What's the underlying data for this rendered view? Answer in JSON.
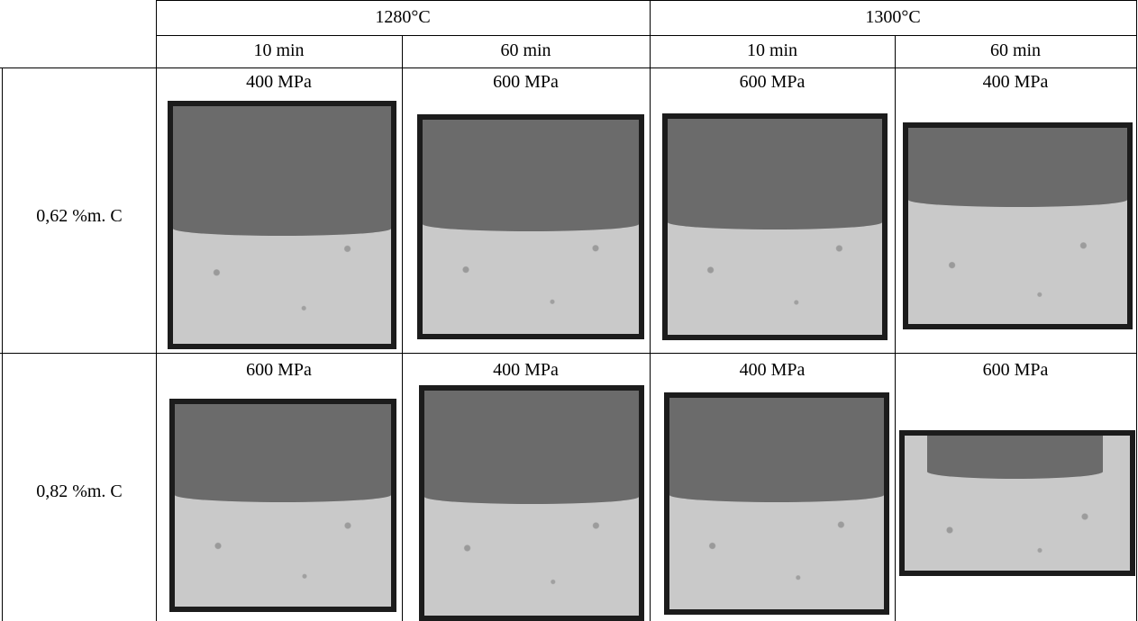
{
  "table": {
    "temperatures": [
      "1280°C",
      "1300°C"
    ],
    "times": [
      "10 min",
      "60 min",
      "10 min",
      "60 min"
    ],
    "rows": [
      {
        "label": "0,62 %m. C",
        "pressures": [
          "400 MPa",
          "600 MPa",
          "600 MPa",
          "400 MPa"
        ]
      },
      {
        "label": "0,82 %m. C",
        "pressures": [
          "600 MPa",
          "400 MPa",
          "400 MPa",
          "600 MPa"
        ]
      }
    ]
  }
}
